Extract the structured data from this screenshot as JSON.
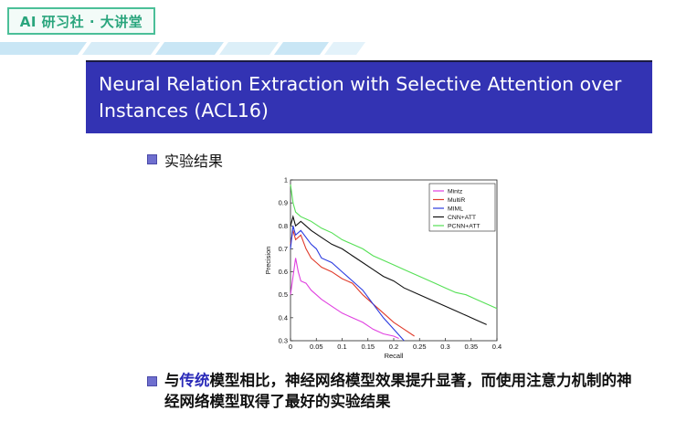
{
  "brand": {
    "label": "AI 研习社 · 大讲堂"
  },
  "slide": {
    "title": "Neural Relation Extraction with Selective Attention over Instances (ACL16)",
    "bullet1": "实验结果",
    "conclusion_prefix": "与",
    "conclusion_highlight": "传统",
    "conclusion_rest": "模型相比，神经网络模型效果提升显著，而使用注意力机制的神经网络模型取得了最好的实验结果"
  },
  "colors": {
    "title_bg": "#3333b3",
    "brand_green": "#2aa57d",
    "stripe_blue": "#bfe3f5"
  },
  "chart_data": {
    "type": "line",
    "title": "",
    "xlabel": "Recall",
    "ylabel": "Precision",
    "xlim": [
      0,
      0.4
    ],
    "ylim": [
      0.3,
      1.0
    ],
    "xticks": [
      0,
      0.05,
      0.1,
      0.15,
      0.2,
      0.25,
      0.3,
      0.35,
      0.4
    ],
    "xtick_labels": [
      "0",
      "0.05",
      "0.1",
      "0.15",
      "0.2",
      "0.25",
      "0.3",
      "0.35",
      "0.4"
    ],
    "yticks": [
      0.3,
      0.4,
      0.5,
      0.6,
      0.7,
      0.8,
      0.9,
      1.0
    ],
    "ytick_labels": [
      "0.3",
      "0.4",
      "0.5",
      "0.6",
      "0.7",
      "0.8",
      "0.9",
      "1"
    ],
    "legend_position": "top-right",
    "series": [
      {
        "name": "Mintz",
        "color": "#e040e0",
        "x": [
          0,
          0.005,
          0.01,
          0.015,
          0.02,
          0.03,
          0.04,
          0.05,
          0.06,
          0.08,
          0.1,
          0.12,
          0.14,
          0.16,
          0.18,
          0.2,
          0.21
        ],
        "y": [
          0.5,
          0.58,
          0.66,
          0.6,
          0.56,
          0.55,
          0.52,
          0.5,
          0.48,
          0.45,
          0.42,
          0.4,
          0.38,
          0.35,
          0.33,
          0.32,
          0.31
        ]
      },
      {
        "name": "MultiR",
        "color": "#e03a2a",
        "x": [
          0,
          0.005,
          0.01,
          0.02,
          0.03,
          0.04,
          0.05,
          0.06,
          0.08,
          0.1,
          0.12,
          0.14,
          0.16,
          0.18,
          0.2,
          0.22,
          0.24
        ],
        "y": [
          0.72,
          0.78,
          0.74,
          0.76,
          0.7,
          0.66,
          0.64,
          0.62,
          0.6,
          0.57,
          0.55,
          0.5,
          0.46,
          0.42,
          0.38,
          0.35,
          0.32
        ]
      },
      {
        "name": "MIML",
        "color": "#2a3ae0",
        "x": [
          0,
          0.005,
          0.01,
          0.02,
          0.03,
          0.04,
          0.05,
          0.06,
          0.08,
          0.1,
          0.12,
          0.14,
          0.16,
          0.18,
          0.2,
          0.22
        ],
        "y": [
          0.7,
          0.8,
          0.76,
          0.78,
          0.75,
          0.72,
          0.7,
          0.66,
          0.64,
          0.6,
          0.56,
          0.52,
          0.46,
          0.4,
          0.35,
          0.3
        ]
      },
      {
        "name": "CNN+ATT",
        "color": "#111111",
        "x": [
          0,
          0.005,
          0.01,
          0.02,
          0.03,
          0.04,
          0.06,
          0.08,
          0.1,
          0.12,
          0.14,
          0.16,
          0.18,
          0.2,
          0.22,
          0.25,
          0.28,
          0.3,
          0.32,
          0.34,
          0.36,
          0.38
        ],
        "y": [
          0.8,
          0.84,
          0.8,
          0.82,
          0.8,
          0.78,
          0.75,
          0.72,
          0.7,
          0.67,
          0.64,
          0.61,
          0.58,
          0.56,
          0.53,
          0.5,
          0.47,
          0.45,
          0.43,
          0.41,
          0.39,
          0.37
        ]
      },
      {
        "name": "PCNN+ATT",
        "color": "#55e055",
        "x": [
          0,
          0.005,
          0.01,
          0.02,
          0.03,
          0.04,
          0.06,
          0.08,
          0.1,
          0.12,
          0.14,
          0.16,
          0.18,
          0.2,
          0.22,
          0.25,
          0.28,
          0.3,
          0.32,
          0.34,
          0.36,
          0.38,
          0.4
        ],
        "y": [
          0.98,
          0.9,
          0.86,
          0.84,
          0.83,
          0.82,
          0.79,
          0.77,
          0.74,
          0.72,
          0.7,
          0.67,
          0.65,
          0.63,
          0.61,
          0.58,
          0.55,
          0.53,
          0.51,
          0.5,
          0.48,
          0.46,
          0.44
        ]
      }
    ]
  }
}
